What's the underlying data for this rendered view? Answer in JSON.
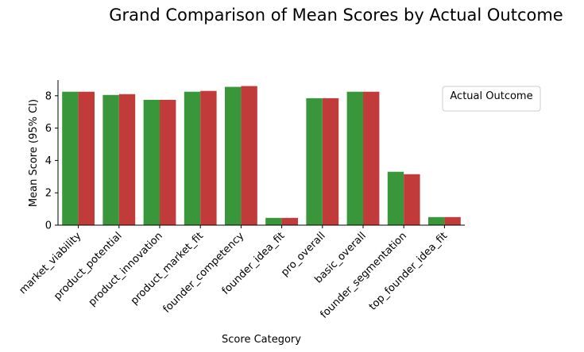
{
  "chart_data": {
    "type": "bar",
    "title": "Grand Comparison of Mean Scores by Actual Outcome",
    "xlabel": "Score Category",
    "ylabel": "Mean Score (95% CI)",
    "ylim": [
      0,
      9
    ],
    "yticks": [
      0,
      2,
      4,
      6,
      8
    ],
    "grid": false,
    "legend": {
      "title": "Actual Outcome",
      "placement": "top-right",
      "entries": []
    },
    "categories": [
      "market_viability",
      "product_potential",
      "product_innovation",
      "product_market_fit",
      "founder_competency",
      "founder_idea_fit",
      "pro_overall",
      "basic_overall",
      "founder_segmentation",
      "top_founder_idea_fit"
    ],
    "series": [
      {
        "color": "#3a963a",
        "values": [
          8.25,
          8.05,
          7.75,
          8.25,
          8.55,
          0.45,
          7.85,
          8.25,
          3.3,
          0.5
        ]
      },
      {
        "color": "#c23b3b",
        "values": [
          8.25,
          8.1,
          7.75,
          8.3,
          8.6,
          0.45,
          7.85,
          8.25,
          3.15,
          0.5
        ]
      }
    ]
  }
}
